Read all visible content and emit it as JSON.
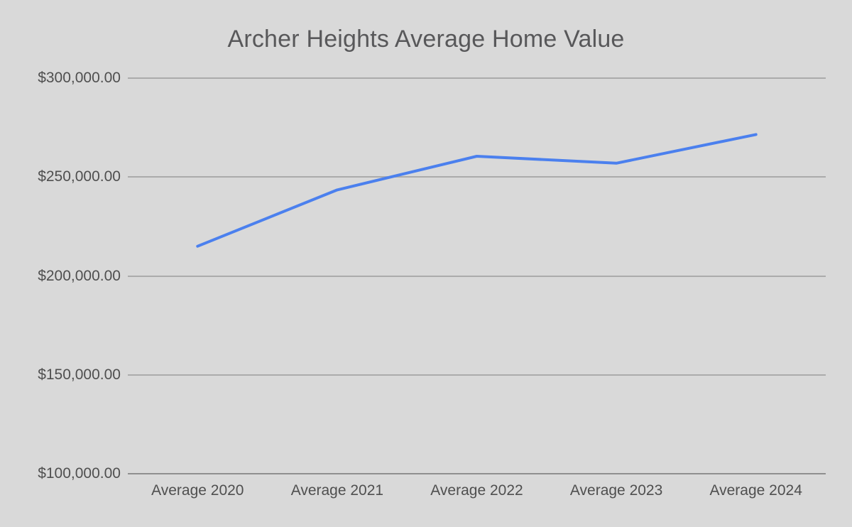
{
  "chart": {
    "colors": {
      "background": "#d9d9d9",
      "line": "#4b80ee",
      "gridline": "#ababab",
      "axis_line": "#8f8f8f",
      "title_text": "#58585a",
      "tick_text": "#4f4f4f"
    }
  },
  "chart_data": {
    "type": "line",
    "title": "Archer Heights Average Home Value",
    "categories": [
      "Average 2020",
      "Average 2021",
      "Average 2022",
      "Average 2023",
      "Average 2024"
    ],
    "series": [
      {
        "values": [
          215000,
          243500,
          260500,
          257000,
          271500
        ]
      }
    ],
    "xlabel": "",
    "ylabel": "",
    "ylim": [
      100000,
      300000
    ],
    "yticks": [
      300000,
      250000,
      200000,
      150000,
      100000
    ],
    "ytick_labels": [
      "$300,000.00",
      "$250,000.00",
      "$200,000.00",
      "$150,000.00",
      "$100,000.00"
    ],
    "grid": "horizontal",
    "legend": "none"
  }
}
